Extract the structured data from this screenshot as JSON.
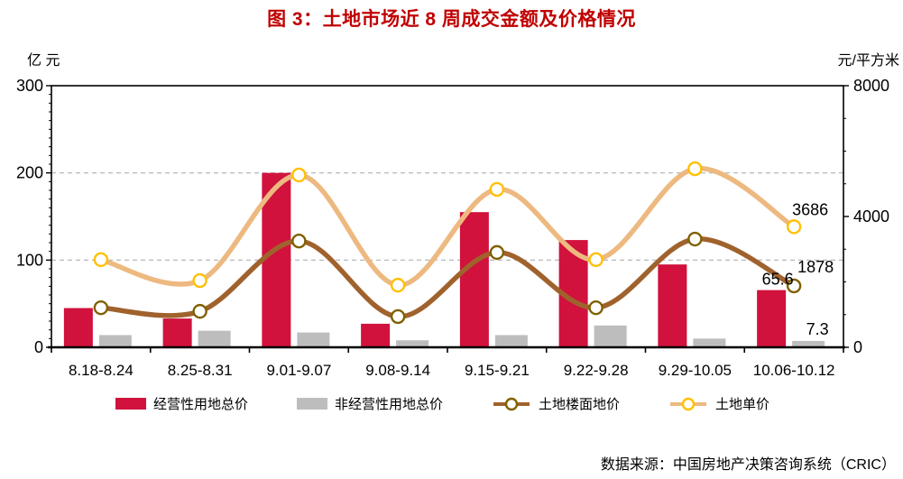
{
  "title": "图 3：土地市场近 8 周成交金额及价格情况",
  "source": "数据来源：中国房地产决策咨询系统（CRIC）",
  "left_axis": {
    "unit": "亿 元",
    "max": 300,
    "ticks": [
      "300",
      "200",
      "100",
      "0"
    ]
  },
  "right_axis": {
    "unit": "元/平方米",
    "max": 8000,
    "ticks": [
      "8000",
      "4000",
      "0"
    ]
  },
  "colors": {
    "title": "#C00000",
    "axis": "#000000",
    "gridline": "#b0b0b0",
    "background": "#ffffff"
  },
  "chart_data": {
    "type": "bar+line combo",
    "categories": [
      "8.18-8.24",
      "8.25-8.31",
      "9.01-9.07",
      "9.08-9.14",
      "9.15-9.21",
      "9.22-9.28",
      "9.29-10.05",
      "10.06-10.12"
    ],
    "grid": "dashed horizontal at left-axis 100 and 200",
    "legend_position": "bottom",
    "series": [
      {
        "name": "经营性用地总价",
        "type": "bar",
        "axis": "left",
        "color": "#D0123C",
        "values": [
          45,
          33,
          200,
          27,
          155,
          123,
          95,
          65.6
        ]
      },
      {
        "name": "非经营性用地总价",
        "type": "bar",
        "axis": "left",
        "color": "#BDBDBD",
        "values": [
          14,
          19,
          17,
          8,
          14,
          25,
          10,
          7.3
        ]
      },
      {
        "name": "土地楼面地价",
        "type": "line",
        "axis": "right",
        "color": "#A0622D",
        "marker_ring": "#7F6000",
        "values": [
          1210,
          1100,
          3250,
          940,
          2900,
          1210,
          3310,
          1878
        ]
      },
      {
        "name": "土地单价",
        "type": "line",
        "axis": "right",
        "color": "#EDB980",
        "marker_ring": "#FFC000",
        "values": [
          2680,
          2040,
          5270,
          1900,
          4830,
          2680,
          5460,
          3686
        ]
      }
    ],
    "end_labels": [
      {
        "series": 0,
        "text": "65.6"
      },
      {
        "series": 1,
        "text": "7.3"
      },
      {
        "series": 2,
        "text": "1878"
      },
      {
        "series": 3,
        "text": "3686"
      }
    ]
  }
}
